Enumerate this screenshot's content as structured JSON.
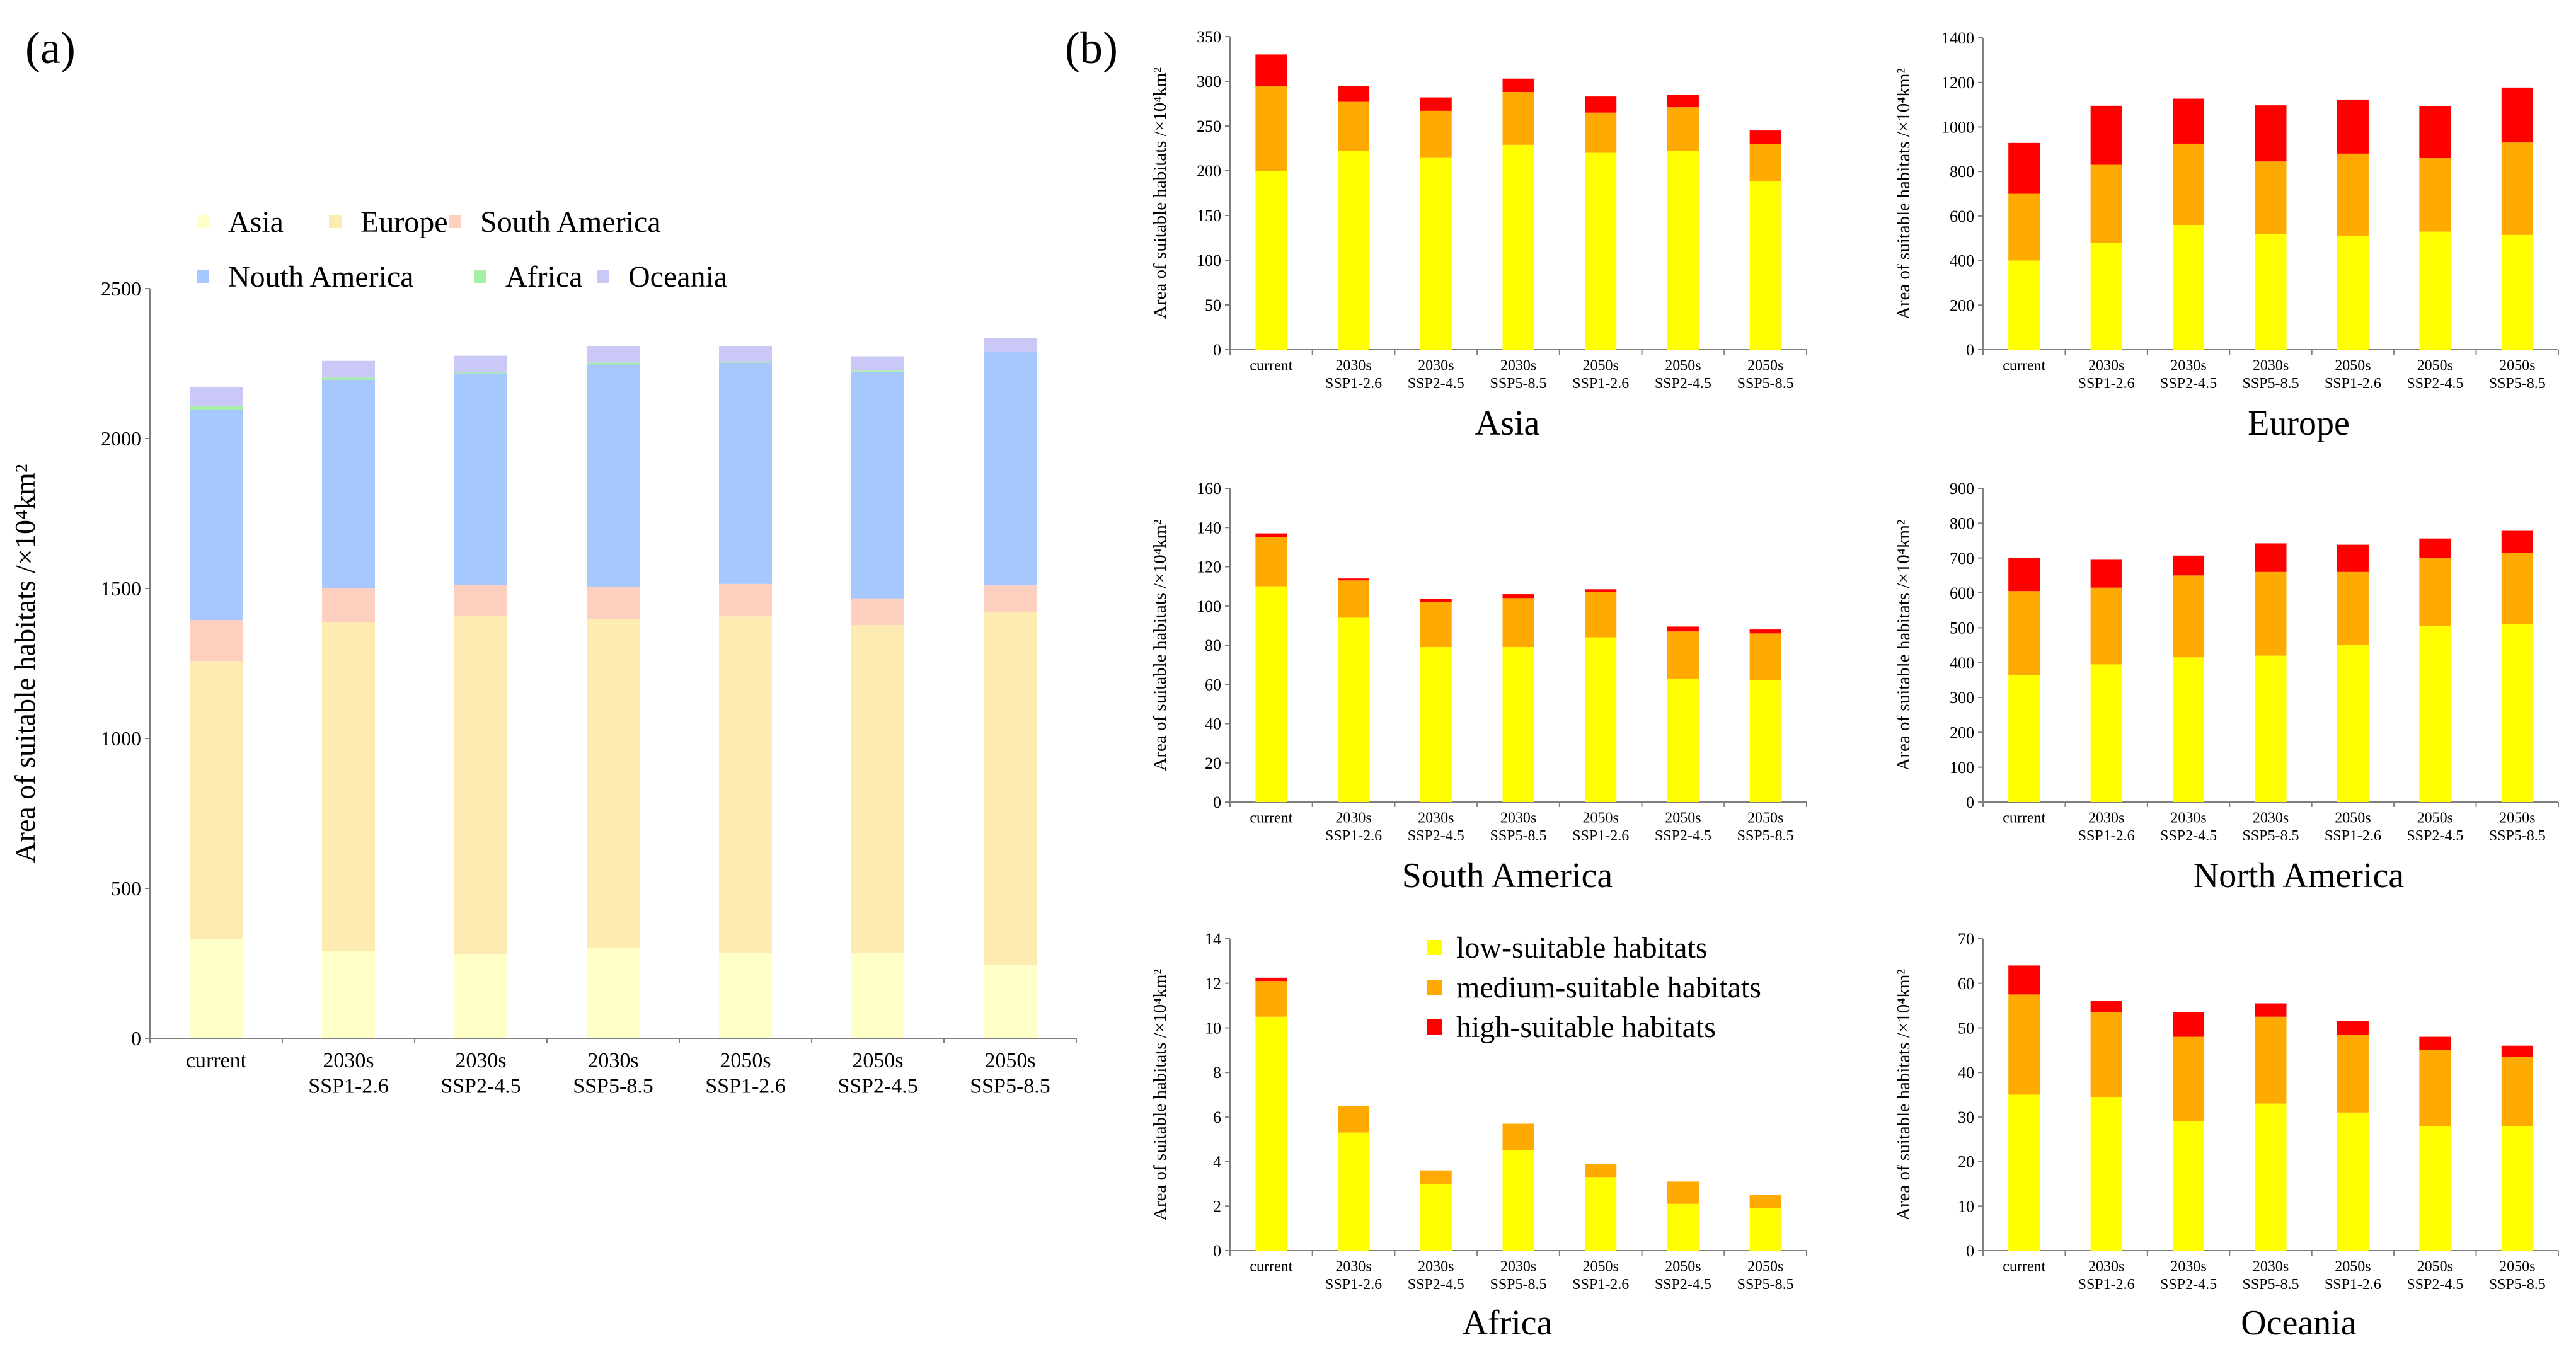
{
  "panel_labels": {
    "a": "(a)",
    "b": "(b)"
  },
  "colors": {
    "Asia": "#ffffc8",
    "Europe": "#fdebb2",
    "South America": "#fdcfbf",
    "Nouth America": "#a7c8ff",
    "Africa": "#a6f0a6",
    "Oceania": "#c9c8f7",
    "low": "#ffff00",
    "medium": "#ffaa00",
    "high": "#ff0000",
    "axis": "#7f7f7f"
  },
  "chart_data": [
    {
      "id": "a",
      "type": "bar",
      "stacked": true,
      "title": "",
      "categories": [
        [
          "current"
        ],
        [
          "2030s",
          "SSP1-2.6"
        ],
        [
          "2030s",
          "SSP2-4.5"
        ],
        [
          "2030s",
          "SSP5-8.5"
        ],
        [
          "2050s",
          "SSP1-2.6"
        ],
        [
          "2050s",
          "SSP2-4.5"
        ],
        [
          "2050s",
          "SSP5-8.5"
        ]
      ],
      "ylabel": "Area of suitable habitats /×10⁴km²",
      "xlabel": "",
      "ylim": [
        0,
        2500
      ],
      "yticks": [
        0,
        500,
        1000,
        1500,
        2000,
        2500
      ],
      "legend": [
        "Asia",
        "Europe",
        "South America",
        "Nouth America",
        "Africa",
        "Oceania"
      ],
      "legend_placement": "top",
      "series": [
        {
          "name": "Asia",
          "values": [
            330,
            292,
            281,
            302,
            284,
            284,
            245
          ]
        },
        {
          "name": "Europe",
          "values": [
            928,
            1095,
            1127,
            1097,
            1123,
            1094,
            1177
          ]
        },
        {
          "name": "South America",
          "values": [
            137,
            114,
            103,
            106,
            108,
            89,
            88
          ]
        },
        {
          "name": "Nouth America",
          "values": [
            700,
            695,
            707,
            742,
            738,
            756,
            778
          ]
        },
        {
          "name": "Africa",
          "values": [
            12,
            7,
            4,
            6,
            4,
            3,
            2
          ]
        },
        {
          "name": "Oceania",
          "values": [
            64,
            56,
            54,
            56,
            52,
            48,
            46
          ]
        }
      ]
    },
    {
      "id": "b-asia",
      "type": "bar",
      "stacked": true,
      "title": "Asia",
      "categories": [
        [
          "current"
        ],
        [
          "2030s",
          "SSP1-2.6"
        ],
        [
          "2030s",
          "SSP2-4.5"
        ],
        [
          "2030s",
          "SSP5-8.5"
        ],
        [
          "2050s",
          "SSP1-2.6"
        ],
        [
          "2050s",
          "SSP2-4.5"
        ],
        [
          "2050s",
          "SSP5-8.5"
        ]
      ],
      "ylabel": "Area of suitable habitats /×10⁴km²",
      "ylim": [
        0,
        350
      ],
      "yticks": [
        0,
        50,
        100,
        150,
        200,
        250,
        300,
        350
      ],
      "series": [
        {
          "name": "low-suitable habitats",
          "values": [
            200,
            222,
            215,
            229,
            220,
            222,
            188
          ]
        },
        {
          "name": "medium-suitable habitats",
          "values": [
            95,
            55,
            52,
            59,
            45,
            49,
            42
          ]
        },
        {
          "name": "high-suitable habitats",
          "values": [
            35,
            18,
            15,
            15,
            18,
            14,
            15
          ]
        }
      ]
    },
    {
      "id": "b-europe",
      "type": "bar",
      "stacked": true,
      "title": "Europe",
      "categories": [
        [
          "current"
        ],
        [
          "2030s",
          "SSP1-2.6"
        ],
        [
          "2030s",
          "SSP2-4.5"
        ],
        [
          "2030s",
          "SSP5-8.5"
        ],
        [
          "2050s",
          "SSP1-2.6"
        ],
        [
          "2050s",
          "SSP2-4.5"
        ],
        [
          "2050s",
          "SSP5-8.5"
        ]
      ],
      "ylabel": "Area of suitable habitats /×10⁴km²",
      "ylim": [
        0,
        1400
      ],
      "yticks": [
        0,
        200,
        400,
        600,
        800,
        1000,
        1200,
        1400
      ],
      "series": [
        {
          "name": "low-suitable habitats",
          "values": [
            400,
            480,
            560,
            520,
            510,
            530,
            515
          ]
        },
        {
          "name": "medium-suitable habitats",
          "values": [
            300,
            350,
            365,
            325,
            370,
            330,
            415
          ]
        },
        {
          "name": "high-suitable habitats",
          "values": [
            228,
            265,
            202,
            252,
            243,
            234,
            247
          ]
        }
      ]
    },
    {
      "id": "b-south-america",
      "type": "bar",
      "stacked": true,
      "title": "South America",
      "categories": [
        [
          "current"
        ],
        [
          "2030s",
          "SSP1-2.6"
        ],
        [
          "2030s",
          "SSP2-4.5"
        ],
        [
          "2030s",
          "SSP5-8.5"
        ],
        [
          "2050s",
          "SSP1-2.6"
        ],
        [
          "2050s",
          "SSP2-4.5"
        ],
        [
          "2050s",
          "SSP5-8.5"
        ]
      ],
      "ylabel": "Area of suitable habitats /×10⁴km²",
      "ylim": [
        0,
        160
      ],
      "yticks": [
        0,
        20,
        40,
        60,
        80,
        100,
        120,
        140,
        160
      ],
      "series": [
        {
          "name": "low-suitable habitats",
          "values": [
            110,
            94,
            79,
            79,
            84,
            63,
            62
          ]
        },
        {
          "name": "medium-suitable habitats",
          "values": [
            25,
            19,
            23,
            25,
            23,
            24,
            24
          ]
        },
        {
          "name": "high-suitable habitats",
          "values": [
            2,
            1,
            1.5,
            2,
            1.5,
            2.5,
            2
          ]
        }
      ]
    },
    {
      "id": "b-north-america",
      "type": "bar",
      "stacked": true,
      "title": "North America",
      "categories": [
        [
          "current"
        ],
        [
          "2030s",
          "SSP1-2.6"
        ],
        [
          "2030s",
          "SSP2-4.5"
        ],
        [
          "2030s",
          "SSP5-8.5"
        ],
        [
          "2050s",
          "SSP1-2.6"
        ],
        [
          "2050s",
          "SSP2-4.5"
        ],
        [
          "2050s",
          "SSP5-8.5"
        ]
      ],
      "ylabel": "Area of suitable habitats /×10⁴km²",
      "ylim": [
        0,
        900
      ],
      "yticks": [
        0,
        100,
        200,
        300,
        400,
        500,
        600,
        700,
        800,
        900
      ],
      "series": [
        {
          "name": "low-suitable habitats",
          "values": [
            365,
            395,
            415,
            420,
            450,
            505,
            510
          ]
        },
        {
          "name": "medium-suitable habitats",
          "values": [
            240,
            220,
            235,
            240,
            210,
            195,
            205
          ]
        },
        {
          "name": "high-suitable habitats",
          "values": [
            95,
            80,
            57,
            82,
            78,
            56,
            63
          ]
        }
      ]
    },
    {
      "id": "b-africa",
      "type": "bar",
      "stacked": true,
      "title": "Africa",
      "categories": [
        [
          "current"
        ],
        [
          "2030s",
          "SSP1-2.6"
        ],
        [
          "2030s",
          "SSP2-4.5"
        ],
        [
          "2030s",
          "SSP5-8.5"
        ],
        [
          "2050s",
          "SSP1-2.6"
        ],
        [
          "2050s",
          "SSP2-4.5"
        ],
        [
          "2050s",
          "SSP5-8.5"
        ]
      ],
      "ylabel": "Area of suitable habitats /×10⁴km²",
      "ylim": [
        0,
        14
      ],
      "yticks": [
        0,
        2,
        4,
        6,
        8,
        10,
        12,
        14
      ],
      "legend": [
        "low-suitable habitats",
        "medium-suitable habitats",
        "high-suitable habitats"
      ],
      "legend_placement": "top-right",
      "series": [
        {
          "name": "low-suitable habitats",
          "values": [
            10.5,
            5.3,
            3.0,
            4.5,
            3.3,
            2.1,
            1.9
          ]
        },
        {
          "name": "medium-suitable habitats",
          "values": [
            1.6,
            1.2,
            0.6,
            1.2,
            0.6,
            1.0,
            0.6
          ]
        },
        {
          "name": "high-suitable habitats",
          "values": [
            0.15,
            0,
            0,
            0,
            0,
            0,
            0
          ]
        }
      ]
    },
    {
      "id": "b-oceania",
      "type": "bar",
      "stacked": true,
      "title": "Oceania",
      "categories": [
        [
          "current"
        ],
        [
          "2030s",
          "SSP1-2.6"
        ],
        [
          "2030s",
          "SSP2-4.5"
        ],
        [
          "2030s",
          "SSP5-8.5"
        ],
        [
          "2050s",
          "SSP1-2.6"
        ],
        [
          "2050s",
          "SSP2-4.5"
        ],
        [
          "2050s",
          "SSP5-8.5"
        ]
      ],
      "ylabel": "Area of suitable habitats /×10⁴km²",
      "ylim": [
        0,
        70
      ],
      "yticks": [
        0,
        10,
        20,
        30,
        40,
        50,
        60,
        70
      ],
      "series": [
        {
          "name": "low-suitable habitats",
          "values": [
            35,
            34.5,
            29,
            33,
            31,
            28,
            28
          ]
        },
        {
          "name": "medium-suitable habitats",
          "values": [
            22.5,
            19,
            19,
            19.5,
            17.5,
            17,
            15.5
          ]
        },
        {
          "name": "high-suitable habitats",
          "values": [
            6.5,
            2.5,
            5.5,
            3,
            3,
            3,
            2.5
          ]
        }
      ]
    }
  ]
}
